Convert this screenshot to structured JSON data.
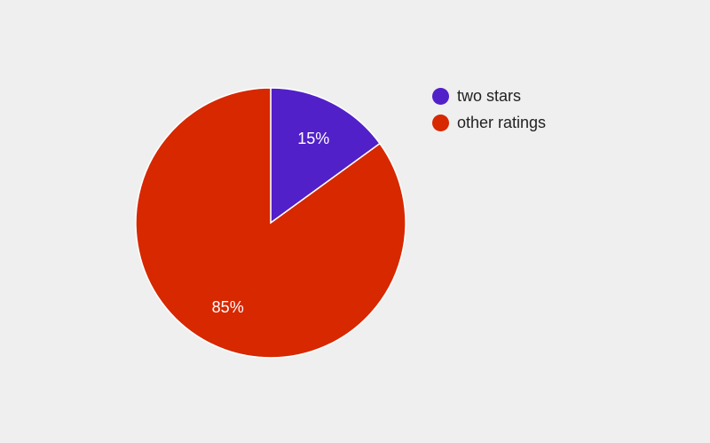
{
  "chart_data": {
    "type": "pie",
    "title": "",
    "slices": [
      {
        "label": "two stars",
        "value": 15,
        "display": "15%",
        "color": "#5220c9"
      },
      {
        "label": "other ratings",
        "value": 85,
        "display": "85%",
        "color": "#d72800"
      }
    ],
    "start_angle_deg": 0,
    "direction": "clockwise",
    "legend_position": "right"
  }
}
